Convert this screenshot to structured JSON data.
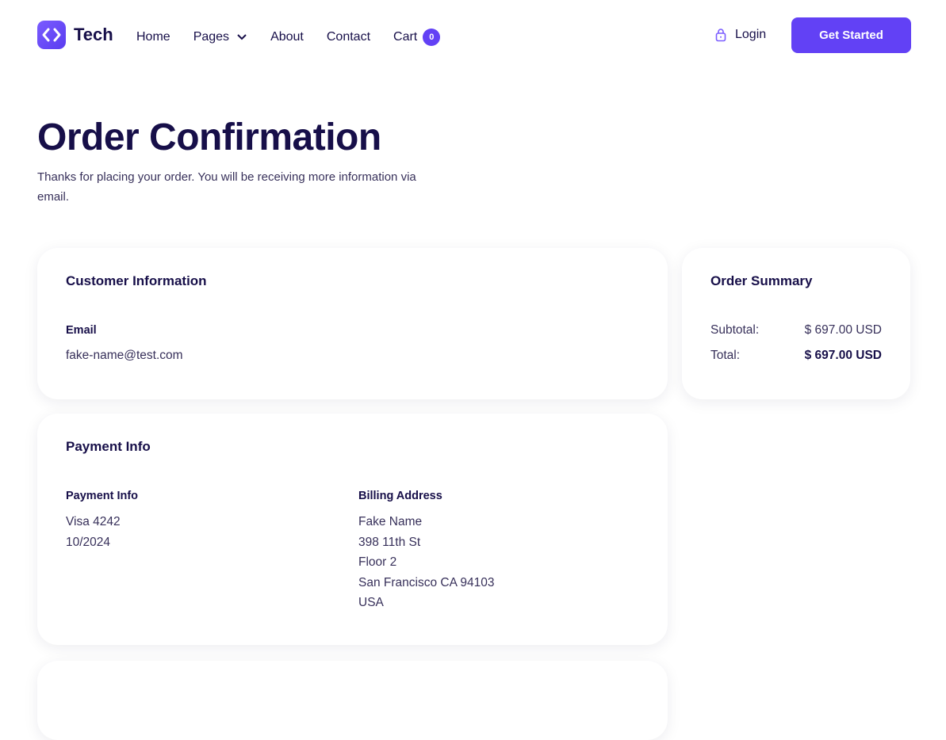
{
  "brand": {
    "name": "Tech",
    "accent": "#6241f5"
  },
  "nav": {
    "items": [
      {
        "label": "Home"
      },
      {
        "label": "Pages"
      },
      {
        "label": "About"
      },
      {
        "label": "Contact"
      },
      {
        "label": "Cart"
      }
    ],
    "cart_count": "0",
    "login": "Login",
    "cta": "Get Started"
  },
  "page": {
    "title": "Order Confirmation",
    "subtitle": "Thanks for placing your order. You will be receiving more information via email."
  },
  "customer": {
    "title": "Customer Information",
    "email_label": "Email",
    "email": "fake-name@test.com"
  },
  "summary": {
    "title": "Order Summary",
    "subtotal_label": "Subtotal:",
    "subtotal": "$ 697.00 USD",
    "total_label": "Total:",
    "total": "$ 697.00 USD"
  },
  "payment": {
    "title": "Payment Info",
    "info_label": "Payment Info",
    "card": "Visa 4242",
    "expiry": "10/2024",
    "billing_label": "Billing Address",
    "address": [
      "Fake Name",
      "398 11th St",
      "Floor 2",
      "San Francisco CA 94103",
      "USA"
    ]
  }
}
